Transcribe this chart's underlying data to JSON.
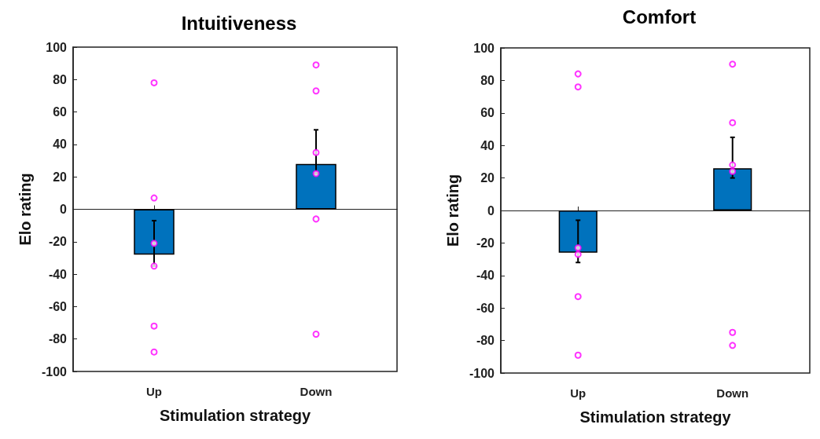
{
  "chart_data": [
    {
      "type": "bar",
      "title": "Intuitiveness",
      "xlabel": "Stimulation strategy",
      "ylabel": "Elo rating",
      "categories": [
        "Up",
        "Down"
      ],
      "ylim": [
        -100,
        100
      ],
      "yticks": [
        -100,
        -80,
        -60,
        -40,
        -20,
        0,
        20,
        40,
        60,
        80,
        100
      ],
      "series": [
        {
          "type": "bar",
          "color": "#0072bd",
          "values": [
            -28,
            28
          ],
          "errors": [
            [
              -35,
              -7
            ],
            [
              22,
              49
            ]
          ]
        },
        {
          "type": "scatter",
          "color": "#ff00ff",
          "marker": "circle",
          "x": [
            "Up",
            "Up",
            "Up",
            "Up",
            "Up",
            "Up",
            "Down",
            "Down",
            "Down",
            "Down",
            "Down",
            "Down"
          ],
          "values": [
            78,
            7,
            -21,
            -35,
            -72,
            -88,
            89,
            73,
            35,
            22,
            -6,
            -77
          ]
        }
      ]
    },
    {
      "type": "bar",
      "title": "Comfort",
      "xlabel": "Stimulation strategy",
      "ylabel": "Elo rating",
      "categories": [
        "Up",
        "Down"
      ],
      "ylim": [
        -100,
        100
      ],
      "yticks": [
        -100,
        -80,
        -60,
        -40,
        -20,
        0,
        20,
        40,
        60,
        80,
        100
      ],
      "series": [
        {
          "type": "bar",
          "color": "#0072bd",
          "values": [
            -26,
            26
          ],
          "errors": [
            [
              -32,
              -6
            ],
            [
              20,
              45
            ]
          ]
        },
        {
          "type": "scatter",
          "color": "#ff00ff",
          "marker": "circle",
          "x": [
            "Up",
            "Up",
            "Up",
            "Up",
            "Up",
            "Up",
            "Down",
            "Down",
            "Down",
            "Down",
            "Down",
            "Down"
          ],
          "values": [
            84,
            76,
            -23,
            -27,
            -53,
            -89,
            90,
            54,
            28,
            24,
            -75,
            -83
          ]
        }
      ]
    }
  ]
}
